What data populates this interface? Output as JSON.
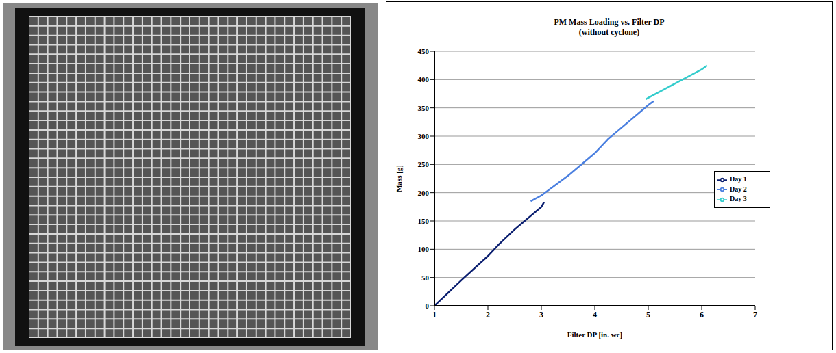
{
  "chart_data": {
    "type": "line",
    "title": "PM Mass Loading vs. Filter DP",
    "subtitle": "(without cyclone)",
    "x_label": "Filter DP [in. wc]",
    "y_label": "Mass [g]",
    "xlim": [
      1,
      7
    ],
    "xticks": [
      1,
      2,
      3,
      4,
      5,
      6,
      7
    ],
    "ylim": [
      0,
      450
    ],
    "yticks": [
      0,
      50,
      100,
      150,
      200,
      250,
      300,
      350,
      400,
      450
    ],
    "grid": true,
    "legend": "right",
    "marker": "none",
    "series": [
      {
        "name": "Day 1",
        "color": "#0b1f70",
        "x": [
          1,
          1.5,
          2,
          2.2,
          2.5,
          3,
          3.05
        ],
        "values": [
          0,
          45,
          88,
          108,
          135,
          175,
          183
        ]
      },
      {
        "name": "Day 2",
        "color": "#4a7fe0",
        "x": [
          2.8,
          3,
          3.5,
          4,
          4.25,
          4.5,
          5,
          5.1
        ],
        "values": [
          185,
          195,
          230,
          270,
          295,
          315,
          355,
          362
        ]
      },
      {
        "name": "Day 3",
        "color": "#33cccc",
        "x": [
          4.95,
          5,
          5.5,
          6,
          6.1
        ],
        "values": [
          365,
          368,
          393,
          418,
          425
        ]
      }
    ]
  }
}
